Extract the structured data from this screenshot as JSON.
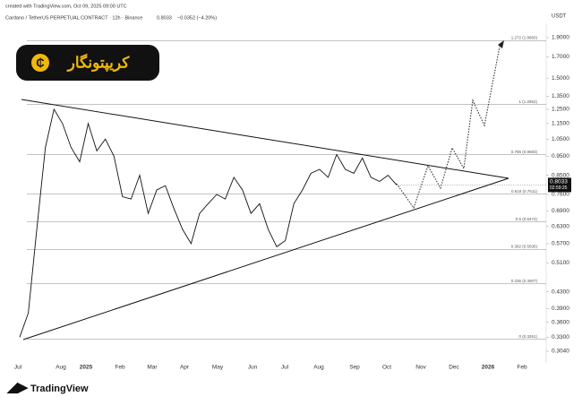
{
  "chart_data": {
    "type": "line",
    "created_note": "created with TradingView.com, Oct 09, 2025 09:00 UTC",
    "title": "Cardano / TetherUS PERPETUAL CONTRACT · 12h · Binance",
    "change_text": "−0.0352 (−4.20%)",
    "unit": "USDT",
    "brand": "TradingView",
    "logo_text": "کریپتونگار",
    "log_scale": true,
    "ylim": [
      0.2915,
      2.055
    ],
    "yticks": [
      {
        "value": 1.9,
        "label": "1.9000"
      },
      {
        "value": 1.7,
        "label": "1.7000"
      },
      {
        "value": 1.5,
        "label": "1.5000"
      },
      {
        "value": 1.35,
        "label": "1.3500"
      },
      {
        "value": 1.25,
        "label": "1.2500"
      },
      {
        "value": 1.15,
        "label": "1.1500"
      },
      {
        "value": 1.05,
        "label": "1.0500"
      },
      {
        "value": 0.95,
        "label": "0.9500"
      },
      {
        "value": 0.85,
        "label": "0.8500"
      },
      {
        "value": 0.76,
        "label": "0.7600"
      },
      {
        "value": 0.69,
        "label": "0.6900"
      },
      {
        "value": 0.63,
        "label": "0.6300"
      },
      {
        "value": 0.57,
        "label": "0.5700"
      },
      {
        "value": 0.51,
        "label": "0.5100"
      },
      {
        "value": 0.43,
        "label": "0.4300"
      },
      {
        "value": 0.39,
        "label": "0.3900"
      },
      {
        "value": 0.36,
        "label": "0.3600"
      },
      {
        "value": 0.33,
        "label": "0.3300"
      },
      {
        "value": 0.304,
        "label": "0.3040"
      }
    ],
    "x_axis_labels": [
      "Jul",
      "Aug",
      "2025",
      "Feb",
      "Mar",
      "Apr",
      "May",
      "Jun",
      "Jul",
      "Aug",
      "Sep",
      "Oct",
      "Nov",
      "Dec",
      "2026",
      "Feb"
    ],
    "fib_levels": [
      {
        "value": 1.866,
        "label": "1.272 (1.8660)"
      },
      {
        "value": 1.2852,
        "label": "1 (1.2852)"
      },
      {
        "value": 0.9583,
        "label": "0.786 (0.9583)"
      },
      {
        "value": 0.7611,
        "label": "0.618 (0.7611)"
      },
      {
        "value": 0.6474,
        "label": "0.5 (0.6474)"
      },
      {
        "value": 0.5506,
        "label": "0.382 (0.5506)"
      },
      {
        "value": 0.4507,
        "label": "0.236 (0.4507)"
      },
      {
        "value": 0.3261,
        "label": "0 (0.3261)"
      }
    ],
    "last_price": 0.8033,
    "countdown": "02:59:25",
    "series": [
      {
        "name": "ADAUSDT",
        "color": "#111111",
        "values": [
          0.33,
          0.38,
          0.62,
          1.0,
          1.25,
          1.15,
          1.0,
          0.92,
          1.15,
          0.98,
          1.05,
          0.95,
          0.75,
          0.74,
          0.85,
          0.68,
          0.78,
          0.8,
          0.7,
          0.62,
          0.57,
          0.68,
          0.72,
          0.76,
          0.74,
          0.84,
          0.78,
          0.68,
          0.72,
          0.62,
          0.56,
          0.58,
          0.72,
          0.78,
          0.86,
          0.88,
          0.84,
          0.96,
          0.88,
          0.86,
          0.94,
          0.84,
          0.82,
          0.85,
          0.8033
        ]
      }
    ]
  }
}
